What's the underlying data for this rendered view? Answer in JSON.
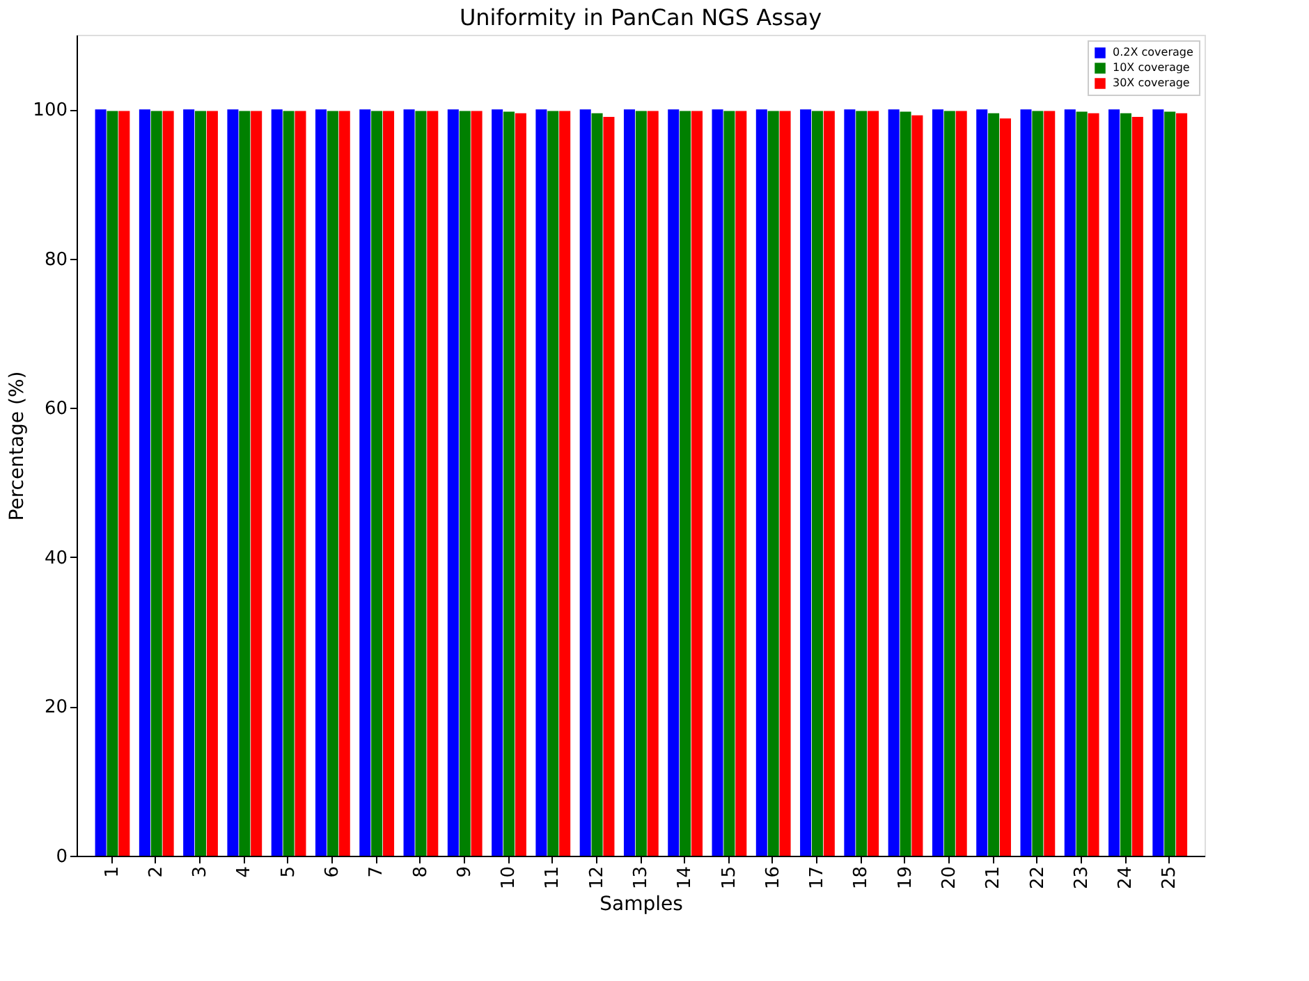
{
  "chart_data": {
    "type": "bar",
    "title": "Uniformity in PanCan NGS Assay",
    "xlabel": "Samples",
    "ylabel": "Percentage (%)",
    "categories": [
      "1",
      "2",
      "3",
      "4",
      "5",
      "6",
      "7",
      "8",
      "9",
      "10",
      "11",
      "12",
      "13",
      "14",
      "15",
      "16",
      "17",
      "18",
      "19",
      "20",
      "21",
      "22",
      "23",
      "24",
      "25"
    ],
    "series": [
      {
        "name": "0.2X coverage",
        "color": "#0000ff",
        "values": [
          100,
          100,
          100,
          100,
          100,
          100,
          100,
          100,
          100,
          100,
          100,
          100,
          100,
          100,
          100,
          100,
          100,
          100,
          100,
          100,
          100,
          100,
          100,
          100,
          100
        ]
      },
      {
        "name": "10X coverage",
        "color": "#008000",
        "values": [
          99.8,
          99.8,
          99.8,
          99.8,
          99.8,
          99.8,
          99.8,
          99.8,
          99.8,
          99.7,
          99.8,
          99.5,
          99.8,
          99.8,
          99.8,
          99.8,
          99.8,
          99.8,
          99.7,
          99.8,
          99.5,
          99.8,
          99.7,
          99.5,
          99.7
        ]
      },
      {
        "name": "30X coverage",
        "color": "#ff0000",
        "values": [
          99.8,
          99.8,
          99.8,
          99.8,
          99.8,
          99.8,
          99.8,
          99.8,
          99.8,
          99.5,
          99.8,
          99.0,
          99.8,
          99.8,
          99.8,
          99.8,
          99.8,
          99.8,
          99.2,
          99.8,
          98.8,
          99.8,
          99.5,
          99.0,
          99.5
        ]
      }
    ],
    "ylim": [
      0,
      110
    ],
    "yticks": [
      0,
      20,
      40,
      60,
      80,
      100
    ],
    "grid": false,
    "legend": "top right"
  }
}
